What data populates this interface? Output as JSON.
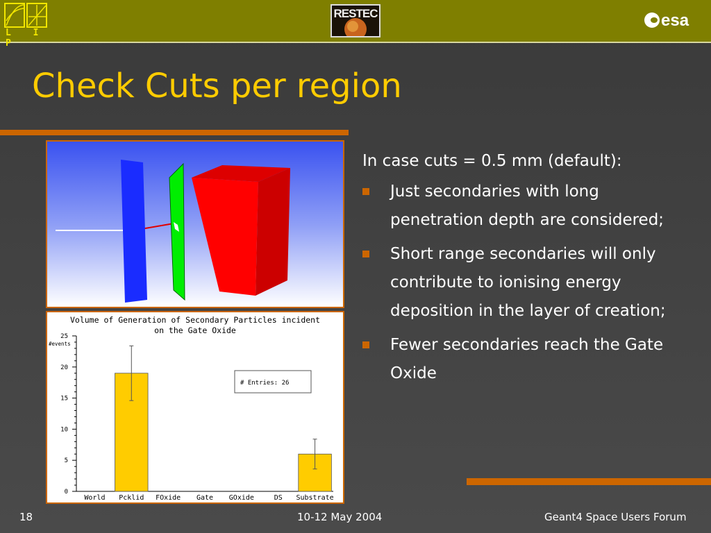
{
  "header": {
    "lip_logo_text": "L I P",
    "restec_logo_text": "RESTEC",
    "esa_logo_text": "esa"
  },
  "slide": {
    "title": "Check Cuts per region",
    "intro": "In case cuts = 0.5 mm (default):",
    "bullets": [
      "Just secondaries with long penetration depth are considered;",
      "Short range secondaries will only contribute to ionising energy deposition in the layer of creation;",
      "Fewer secondaries reach the Gate Oxide"
    ]
  },
  "geometry_view": {
    "colors": {
      "background_top": "#3a52f0",
      "plate_blue": "#1a2cff",
      "plate_green": "#00ee00",
      "block_red": "#ff0000",
      "track_red": "#e00000"
    }
  },
  "chart_data": {
    "type": "bar",
    "title_line1": "Volume of Generation of Secondary Particles incident",
    "title_line2": "on the Gate Oxide",
    "ylabel": "#events",
    "categories": [
      "World",
      "Pcklid",
      "FOxide",
      "Gate",
      "GOxide",
      "DS",
      "Substrate"
    ],
    "values": [
      0,
      19,
      0,
      0,
      0,
      0,
      6
    ],
    "errors": [
      0,
      4.4,
      0,
      0,
      0,
      0,
      2.4
    ],
    "ylim": [
      0,
      25
    ],
    "yticks": [
      "0",
      "5",
      "10",
      "15",
      "20",
      "25"
    ],
    "stats_label": "# Entries: 26",
    "bar_color": "#ffcc00"
  },
  "footer": {
    "page_number": "18",
    "date": "10-12 May 2004",
    "event": "Geant4 Space Users Forum"
  }
}
